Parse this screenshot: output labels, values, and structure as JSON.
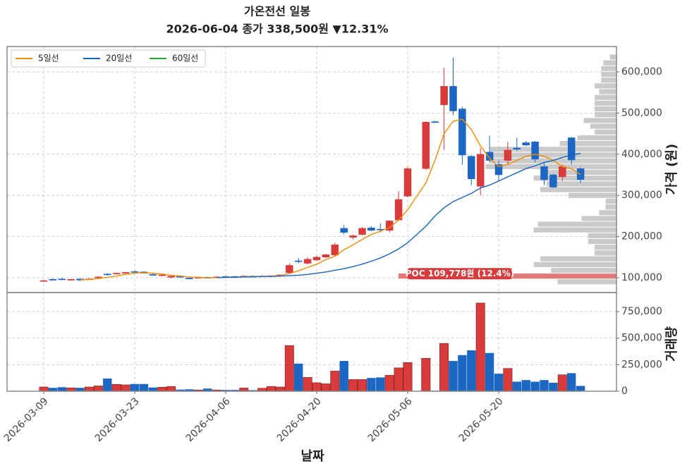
{
  "chart_data": {
    "type": "candlestick",
    "title": "가온전선 일봉",
    "subtitle": "2026-06-04  종가 338,500원  ▼12.31%",
    "x_label": "날짜",
    "y_label": "가격 (원)",
    "volume_label": "거래량",
    "colors": {
      "up": "#d93a3a",
      "down": "#1c66c4"
    },
    "legend": "upper left",
    "grid": true,
    "categories": [
      "2026-03-09",
      null,
      null,
      null,
      null,
      null,
      null,
      null,
      null,
      null,
      "2026-03-23",
      null,
      null,
      null,
      null,
      null,
      null,
      null,
      null,
      null,
      "2026-04-06",
      null,
      null,
      null,
      null,
      null,
      null,
      null,
      null,
      null,
      "2026-04-20",
      null,
      null,
      null,
      null,
      null,
      null,
      null,
      null,
      null,
      "2026-05-06",
      null,
      null,
      null,
      null,
      null,
      null,
      null,
      null,
      null,
      "2026-05-20",
      null,
      null,
      null,
      null,
      null,
      null,
      null,
      null,
      null
    ],
    "open": [
      92000,
      96000,
      97000,
      95000,
      97000,
      96000,
      101000,
      109000,
      110000,
      112000,
      115000,
      114000,
      108000,
      106000,
      101000,
      104000,
      99000,
      100000,
      101000,
      101000,
      103000,
      103000,
      103000,
      104000,
      104000,
      104000,
      106000,
      112000,
      141000,
      135000,
      143000,
      150000,
      155000,
      220000,
      198000,
      205000,
      221000,
      218000,
      215000,
      240000,
      298000,
      null,
      365000,
      479000,
      520000,
      565000,
      510000,
      395000,
      322000,
      405000,
      375000,
      385000,
      415000,
      428000,
      430000,
      370000,
      350000,
      345000,
      440000,
      365000
    ],
    "high": [
      94000,
      98000,
      99000,
      97000,
      99000,
      100000,
      104000,
      111000,
      113000,
      114000,
      118000,
      116000,
      112000,
      110000,
      105000,
      106000,
      102000,
      103000,
      103000,
      104000,
      105000,
      105000,
      106000,
      106000,
      106000,
      106000,
      108000,
      135000,
      148000,
      150000,
      153000,
      158000,
      185000,
      228000,
      205000,
      223000,
      225000,
      232000,
      240000,
      310000,
      370000,
      null,
      480000,
      481000,
      610000,
      635000,
      515000,
      398000,
      415000,
      445000,
      385000,
      430000,
      440000,
      432000,
      432000,
      380000,
      352000,
      375000,
      442000,
      368000
    ],
    "low": [
      90000,
      94000,
      94000,
      93000,
      92000,
      95000,
      99000,
      105000,
      108000,
      110000,
      112000,
      110000,
      105000,
      103000,
      98000,
      100000,
      96000,
      98000,
      99000,
      99000,
      100000,
      100000,
      101000,
      102000,
      102000,
      102000,
      103000,
      110000,
      135000,
      132000,
      140000,
      148000,
      152000,
      205000,
      193000,
      203000,
      213000,
      210000,
      210000,
      238000,
      295000,
      null,
      362000,
      476000,
      410000,
      495000,
      375000,
      325000,
      300000,
      380000,
      335000,
      375000,
      408000,
      420000,
      380000,
      325000,
      318000,
      335000,
      375000,
      330000
    ],
    "close": [
      93000,
      95000,
      95000,
      96000,
      94000,
      97000,
      102000,
      107000,
      111000,
      113000,
      114000,
      111000,
      106000,
      107000,
      104000,
      101000,
      98000,
      101000,
      100000,
      102000,
      101000,
      102000,
      104000,
      103000,
      104000,
      105000,
      107000,
      130000,
      139000,
      145000,
      150000,
      156000,
      180000,
      210000,
      202000,
      220000,
      215000,
      216000,
      238000,
      290000,
      365000,
      null,
      478000,
      478000,
      565000,
      505000,
      398000,
      340000,
      400000,
      385000,
      350000,
      410000,
      412000,
      422000,
      388000,
      338000,
      320000,
      370000,
      386000,
      338500
    ],
    "volume": [
      40000,
      32000,
      38000,
      32000,
      32000,
      40000,
      50000,
      120000,
      65000,
      60000,
      68000,
      68000,
      35000,
      38000,
      45000,
      15000,
      18000,
      12000,
      25000,
      12000,
      12000,
      12000,
      30000,
      10000,
      28000,
      45000,
      40000,
      430000,
      260000,
      130000,
      80000,
      70000,
      190000,
      285000,
      110000,
      110000,
      125000,
      130000,
      150000,
      220000,
      270000,
      null,
      310000,
      5000,
      450000,
      285000,
      340000,
      385000,
      830000,
      360000,
      165000,
      215000,
      90000,
      105000,
      90000,
      105000,
      80000,
      155000,
      170000,
      50000
    ],
    "ma": [
      {
        "name": "5일선",
        "color": "#f08c00",
        "values": [
          null,
          null,
          null,
          null,
          95000,
          96000,
          98000,
          101000,
          104000,
          108000,
          111000,
          112000,
          111000,
          109000,
          106000,
          104000,
          102000,
          101000,
          100000,
          100000,
          101000,
          101000,
          102000,
          103000,
          103000,
          104000,
          105000,
          110000,
          117000,
          125000,
          133000,
          144000,
          152000,
          168000,
          180000,
          193000,
          205000,
          213000,
          222000,
          240000,
          265000,
          298000,
          330000,
          385000,
          450000,
          480000,
          485000,
          460000,
          420000,
          390000,
          370000,
          375000,
          385000,
          395000,
          400000,
          395000,
          385000,
          370000,
          365000,
          350000
        ]
      },
      {
        "name": "20일선",
        "color": "#1565c0",
        "values": [
          null,
          null,
          null,
          null,
          null,
          null,
          null,
          null,
          null,
          null,
          null,
          null,
          null,
          null,
          null,
          null,
          null,
          null,
          null,
          100000,
          101000,
          101000,
          102000,
          102000,
          103000,
          103000,
          104000,
          105000,
          106000,
          108000,
          111000,
          114000,
          118000,
          122000,
          127000,
          133000,
          140000,
          148000,
          158000,
          170000,
          185000,
          205000,
          225000,
          250000,
          270000,
          285000,
          295000,
          305000,
          318000,
          325000,
          335000,
          345000,
          355000,
          365000,
          372000,
          380000,
          385000,
          392000,
          398000,
          402000
        ]
      },
      {
        "name": "60일선",
        "color": "#2ca02c"
      }
    ],
    "ylim": [
      64000,
      661600
    ],
    "yticks": [
      {
        "value": 100000,
        "label": "100,000"
      },
      {
        "value": 200000,
        "label": "200,000"
      },
      {
        "value": 300000,
        "label": "300,000"
      },
      {
        "value": 400000,
        "label": "400,000"
      },
      {
        "value": 500000,
        "label": "500,000"
      },
      {
        "value": 600000,
        "label": "600,000"
      }
    ],
    "volume_ylim": [
      0,
      929000
    ],
    "volume_yticks": [
      0,
      {
        "value": 250000,
        "label": "250,000"
      },
      {
        "value": 500000,
        "label": "500,000"
      },
      {
        "value": 750000,
        "label": "750,000"
      }
    ],
    "volume_profile": {
      "color": "#bdbdbd",
      "poc_color": "#e06a6a",
      "poc": 109778,
      "poc_label": "POC 109,778원 (12.4%)",
      "bins": [
        83000,
        97000,
        111000,
        125000,
        139000,
        153000,
        167000,
        181000,
        195000,
        209000,
        223000,
        237000,
        251000,
        265000,
        279000,
        293000,
        307000,
        321000,
        335000,
        349000,
        363000,
        377000,
        391000,
        405000,
        419000,
        433000,
        447000,
        461000,
        475000,
        489000,
        503000,
        517000,
        531000,
        545000,
        559000,
        573000,
        587000,
        601000,
        615000,
        629000,
        643000
      ],
      "values": [
        27,
        100,
        30,
        38,
        35,
        10,
        10,
        13,
        13,
        38,
        36,
        16,
        8,
        5,
        5,
        22,
        35,
        32,
        38,
        35,
        60,
        58,
        58,
        58,
        26,
        18,
        10,
        12,
        15,
        10,
        10,
        10,
        10,
        8,
        10,
        7,
        7,
        7,
        6,
        3
      ]
    }
  }
}
